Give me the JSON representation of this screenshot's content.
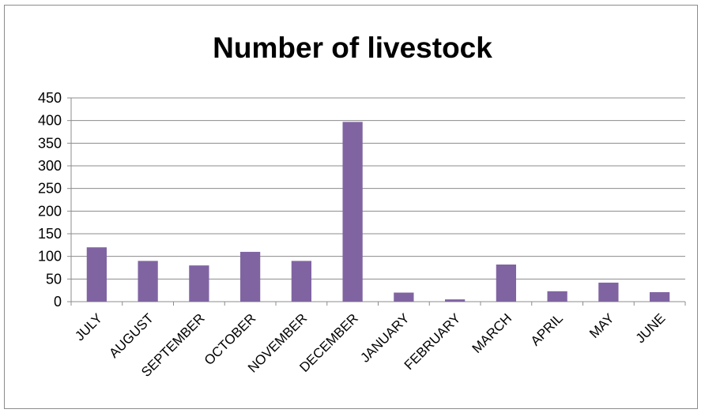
{
  "chart_data": {
    "type": "bar",
    "title": "Number of livestock",
    "categories": [
      "JULY",
      "AUGUST",
      "SEPTEMBER",
      "OCTOBER",
      "NOVEMBER",
      "DECEMBER",
      "JANUARY",
      "FEBRUARY",
      "MARCH",
      "APRIL",
      "MAY",
      "JUNE"
    ],
    "values": [
      120,
      90,
      80,
      110,
      90,
      397,
      20,
      5,
      82,
      23,
      42,
      21
    ],
    "ylim": [
      0,
      450
    ],
    "yticks": [
      0,
      50,
      100,
      150,
      200,
      250,
      300,
      350,
      400,
      450
    ],
    "xlabel": "",
    "ylabel": "",
    "grid": true,
    "legend": "none",
    "bar_color": "#8064a2",
    "grid_color": "#8c8c8c"
  }
}
